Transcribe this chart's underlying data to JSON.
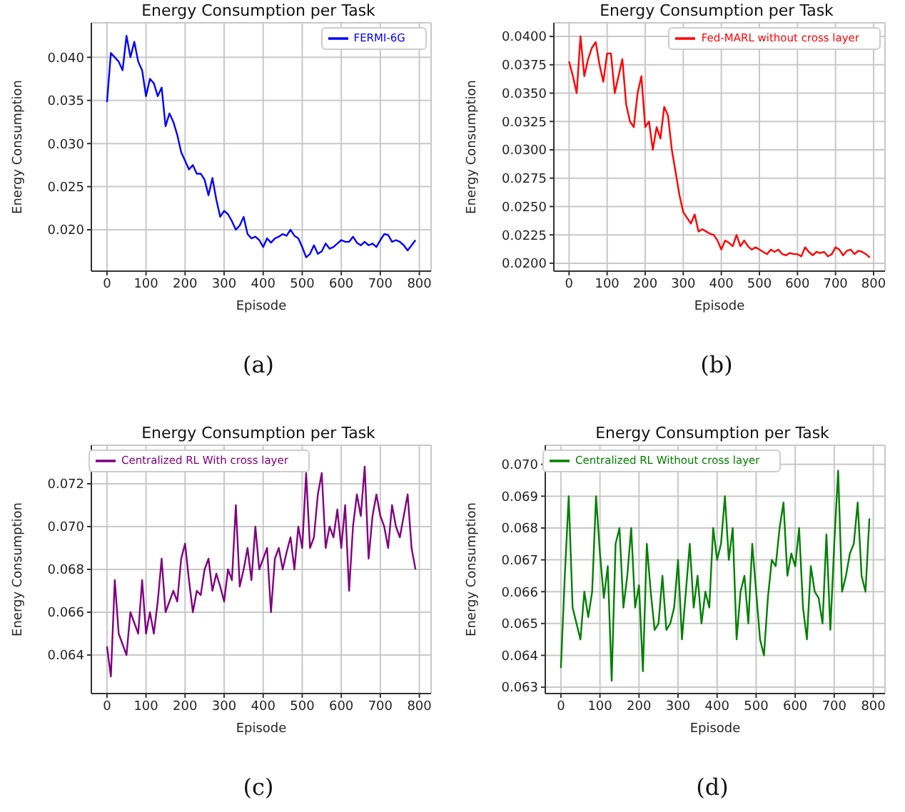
{
  "chart_data": [
    {
      "type": "line",
      "title": "Energy Consumption per Task",
      "xlabel": "Episode",
      "ylabel": "Energy Consumption",
      "annotations": [
        "(a)"
      ],
      "grid": true,
      "legend": "top right",
      "xlim": [
        -40,
        830
      ],
      "xticks": [
        0,
        100,
        200,
        300,
        400,
        500,
        600,
        700,
        800
      ],
      "ylim": [
        0.0152,
        0.044
      ],
      "yticks": [
        {
          "value": 0.02,
          "label": "0.020"
        },
        0.025,
        {
          "value": 0.03,
          "label": "0.030"
        },
        0.035,
        {
          "value": 0.04,
          "label": "0.040"
        }
      ],
      "x": [
        0,
        10,
        20,
        30,
        40,
        50,
        60,
        70,
        80,
        90,
        100,
        110,
        120,
        130,
        140,
        150,
        160,
        170,
        180,
        190,
        200,
        210,
        220,
        230,
        240,
        250,
        260,
        270,
        280,
        290,
        300,
        310,
        320,
        330,
        340,
        350,
        360,
        370,
        380,
        390,
        400,
        410,
        420,
        430,
        440,
        450,
        460,
        470,
        480,
        490,
        500,
        510,
        520,
        530,
        540,
        550,
        560,
        570,
        580,
        590,
        600,
        610,
        620,
        630,
        640,
        650,
        660,
        670,
        680,
        690,
        700,
        710,
        720,
        730,
        740,
        750,
        760,
        770,
        780,
        790
      ],
      "series": [
        {
          "name": "FERMI-6G",
          "color": "#0000ff",
          "values": [
            0.0348,
            0.0405,
            0.04,
            0.0395,
            0.0385,
            0.0425,
            0.04,
            0.0418,
            0.0395,
            0.0385,
            0.0355,
            0.0375,
            0.037,
            0.0355,
            0.0365,
            0.032,
            0.0335,
            0.0325,
            0.031,
            0.029,
            0.028,
            0.027,
            0.0275,
            0.0265,
            0.0265,
            0.0258,
            0.024,
            0.026,
            0.0235,
            0.0215,
            0.0222,
            0.0218,
            0.021,
            0.02,
            0.0205,
            0.0215,
            0.0195,
            0.019,
            0.0192,
            0.0188,
            0.018,
            0.019,
            0.0185,
            0.019,
            0.0192,
            0.0195,
            0.0193,
            0.02,
            0.0193,
            0.019,
            0.018,
            0.0168,
            0.0172,
            0.0182,
            0.0172,
            0.0175,
            0.0184,
            0.0178,
            0.018,
            0.0184,
            0.0188,
            0.0186,
            0.0186,
            0.0192,
            0.0185,
            0.0182,
            0.0186,
            0.0182,
            0.0184,
            0.018,
            0.0188,
            0.0195,
            0.0194,
            0.0186,
            0.0188,
            0.0186,
            0.0182,
            0.0176,
            0.0182,
            0.0188
          ]
        }
      ]
    },
    {
      "type": "line",
      "title": "Energy Consumption per Task",
      "xlabel": "Episode",
      "ylabel": "Energy Consumption",
      "annotations": [
        "(b)"
      ],
      "grid": true,
      "legend": "top right",
      "xlim": [
        -40,
        830
      ],
      "xticks": [
        0,
        100,
        200,
        300,
        400,
        500,
        600,
        700,
        800
      ],
      "ylim": [
        0.0193,
        0.0412
      ],
      "yticks": [
        {
          "value": 0.02,
          "label": "0.0200"
        },
        0.0225,
        {
          "value": 0.025,
          "label": "0.0250"
        },
        0.0275,
        {
          "value": 0.03,
          "label": "0.0300"
        },
        0.0325,
        {
          "value": 0.035,
          "label": "0.0350"
        },
        0.0375,
        {
          "value": 0.04,
          "label": "0.0400"
        }
      ],
      "x": [
        0,
        10,
        20,
        30,
        40,
        50,
        60,
        70,
        80,
        90,
        100,
        110,
        120,
        130,
        140,
        150,
        160,
        170,
        180,
        190,
        200,
        210,
        220,
        230,
        240,
        250,
        260,
        270,
        280,
        290,
        300,
        310,
        320,
        330,
        340,
        350,
        360,
        370,
        380,
        390,
        400,
        410,
        420,
        430,
        440,
        450,
        460,
        470,
        480,
        490,
        500,
        510,
        520,
        530,
        540,
        550,
        560,
        570,
        580,
        590,
        600,
        610,
        620,
        630,
        640,
        650,
        660,
        670,
        680,
        690,
        700,
        710,
        720,
        730,
        740,
        750,
        760,
        770,
        780,
        790
      ],
      "series": [
        {
          "name": "Fed-MARL without cross layer",
          "color": "#ff0000",
          "values": [
            0.0378,
            0.0365,
            0.035,
            0.04,
            0.0365,
            0.038,
            0.039,
            0.0395,
            0.0375,
            0.036,
            0.0385,
            0.0385,
            0.035,
            0.0365,
            0.038,
            0.034,
            0.0325,
            0.032,
            0.035,
            0.0365,
            0.032,
            0.0325,
            0.03,
            0.032,
            0.031,
            0.0338,
            0.033,
            0.03,
            0.028,
            0.026,
            0.0245,
            0.024,
            0.0235,
            0.0243,
            0.0228,
            0.023,
            0.0228,
            0.0226,
            0.0225,
            0.022,
            0.0212,
            0.022,
            0.0218,
            0.0215,
            0.0225,
            0.0215,
            0.022,
            0.0215,
            0.0212,
            0.0214,
            0.0212,
            0.021,
            0.0208,
            0.0212,
            0.021,
            0.0212,
            0.0208,
            0.0207,
            0.0209,
            0.0208,
            0.0208,
            0.0206,
            0.0214,
            0.021,
            0.0207,
            0.021,
            0.0209,
            0.021,
            0.0206,
            0.0208,
            0.0214,
            0.0212,
            0.0207,
            0.0211,
            0.0212,
            0.0208,
            0.0211,
            0.021,
            0.0208,
            0.0205
          ]
        }
      ]
    },
    {
      "type": "line",
      "title": "Energy Consumption per Task",
      "xlabel": "Episode",
      "ylabel": "Energy Consumption",
      "annotations": [
        "(c)"
      ],
      "grid": true,
      "legend": "top left",
      "xlim": [
        -40,
        830
      ],
      "xticks": [
        0,
        100,
        200,
        300,
        400,
        500,
        600,
        700,
        800
      ],
      "ylim": [
        0.0622,
        0.0738
      ],
      "yticks": [
        0.064,
        0.066,
        0.068,
        {
          "value": 0.07,
          "label": "0.070"
        },
        0.072
      ],
      "x": [
        0,
        10,
        20,
        30,
        40,
        50,
        60,
        70,
        80,
        90,
        100,
        110,
        120,
        130,
        140,
        150,
        160,
        170,
        180,
        190,
        200,
        210,
        220,
        230,
        240,
        250,
        260,
        270,
        280,
        290,
        300,
        310,
        320,
        330,
        340,
        350,
        360,
        370,
        380,
        390,
        400,
        410,
        420,
        430,
        440,
        450,
        460,
        470,
        480,
        490,
        500,
        510,
        520,
        530,
        540,
        550,
        560,
        570,
        580,
        590,
        600,
        610,
        620,
        630,
        640,
        650,
        660,
        670,
        680,
        690,
        700,
        710,
        720,
        730,
        740,
        750,
        760,
        770,
        780,
        790
      ],
      "series": [
        {
          "name": "Centralized RL With cross layer",
          "color": "#800080",
          "values": [
            0.0644,
            0.063,
            0.0675,
            0.065,
            0.0645,
            0.064,
            0.066,
            0.0655,
            0.065,
            0.0675,
            0.065,
            0.066,
            0.065,
            0.0665,
            0.0685,
            0.066,
            0.0665,
            0.067,
            0.0665,
            0.0685,
            0.0692,
            0.0675,
            0.066,
            0.067,
            0.0668,
            0.068,
            0.0685,
            0.067,
            0.0678,
            0.0672,
            0.0665,
            0.068,
            0.0675,
            0.071,
            0.0672,
            0.068,
            0.069,
            0.0675,
            0.07,
            0.068,
            0.0685,
            0.069,
            0.066,
            0.0685,
            0.069,
            0.068,
            0.0688,
            0.0695,
            0.068,
            0.07,
            0.069,
            0.0725,
            0.069,
            0.0695,
            0.0715,
            0.0725,
            0.069,
            0.07,
            0.0695,
            0.0708,
            0.069,
            0.071,
            0.067,
            0.07,
            0.0715,
            0.0705,
            0.0728,
            0.0685,
            0.0705,
            0.0715,
            0.0705,
            0.07,
            0.069,
            0.071,
            0.07,
            0.0695,
            0.0705,
            0.0715,
            0.069,
            0.068
          ]
        }
      ]
    },
    {
      "type": "line",
      "title": "Energy Consumption per Task",
      "xlabel": "Episode",
      "ylabel": "Energy Consumption",
      "annotations": [
        "(d)"
      ],
      "grid": true,
      "legend": "top left",
      "xlim": [
        -40,
        830
      ],
      "xticks": [
        0,
        100,
        200,
        300,
        400,
        500,
        600,
        700,
        800
      ],
      "ylim": [
        0.0628,
        0.0706
      ],
      "yticks": [
        0.063,
        0.064,
        0.065,
        0.066,
        0.067,
        0.068,
        0.069,
        {
          "value": 0.07,
          "label": "0.070"
        }
      ],
      "x": [
        0,
        10,
        20,
        30,
        40,
        50,
        60,
        70,
        80,
        90,
        100,
        110,
        120,
        130,
        140,
        150,
        160,
        170,
        180,
        190,
        200,
        210,
        220,
        230,
        240,
        250,
        260,
        270,
        280,
        290,
        300,
        310,
        320,
        330,
        340,
        350,
        360,
        370,
        380,
        390,
        400,
        410,
        420,
        430,
        440,
        450,
        460,
        470,
        480,
        490,
        500,
        510,
        520,
        530,
        540,
        550,
        560,
        570,
        580,
        590,
        600,
        610,
        620,
        630,
        640,
        650,
        660,
        670,
        680,
        690,
        700,
        710,
        720,
        730,
        740,
        750,
        760,
        770,
        780,
        790
      ],
      "series": [
        {
          "name": "Centralized RL Without cross layer",
          "color": "#008000",
          "values": [
            0.0636,
            0.0665,
            0.069,
            0.0655,
            0.065,
            0.0645,
            0.066,
            0.0652,
            0.066,
            0.069,
            0.0672,
            0.0658,
            0.0668,
            0.0632,
            0.0675,
            0.068,
            0.0655,
            0.0665,
            0.068,
            0.0655,
            0.0662,
            0.0635,
            0.0675,
            0.066,
            0.0648,
            0.065,
            0.0665,
            0.0648,
            0.065,
            0.0655,
            0.067,
            0.0645,
            0.066,
            0.0675,
            0.0655,
            0.0665,
            0.065,
            0.066,
            0.0655,
            0.068,
            0.067,
            0.0675,
            0.069,
            0.067,
            0.068,
            0.0645,
            0.066,
            0.0665,
            0.065,
            0.0675,
            0.066,
            0.0645,
            0.064,
            0.0658,
            0.067,
            0.0668,
            0.068,
            0.0688,
            0.0665,
            0.0672,
            0.0668,
            0.068,
            0.0655,
            0.0645,
            0.0668,
            0.066,
            0.0658,
            0.065,
            0.0678,
            0.0648,
            0.0675,
            0.0698,
            0.066,
            0.0665,
            0.0672,
            0.0675,
            0.0688,
            0.0665,
            0.066,
            0.0683
          ]
        }
      ]
    }
  ]
}
